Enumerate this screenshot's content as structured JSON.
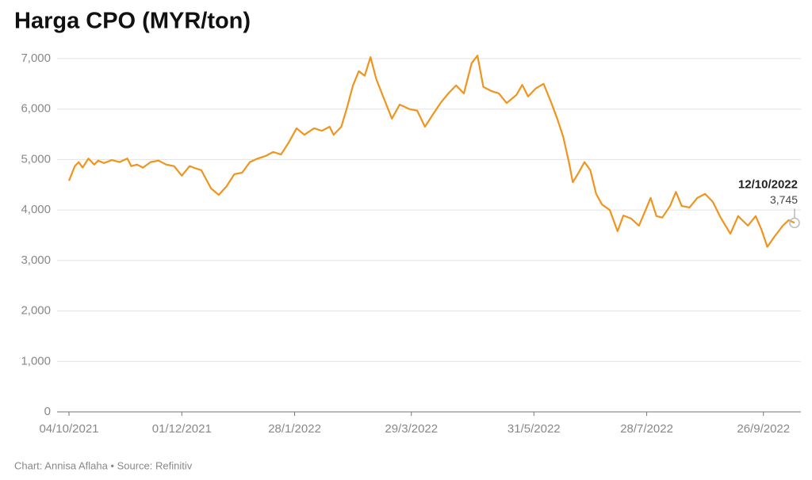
{
  "chart_data": {
    "type": "line",
    "title": "Harga CPO (MYR/ton)",
    "footer": "Chart: Annisa Aflaha • Source: Refinitiv",
    "x": [
      "04/10/2021",
      "07/10/2021",
      "09/10/2021",
      "11/10/2021",
      "14/10/2021",
      "17/10/2021",
      "19/10/2021",
      "22/10/2021",
      "26/10/2021",
      "30/10/2021",
      "03/11/2021",
      "05/11/2021",
      "08/11/2021",
      "11/11/2021",
      "15/11/2021",
      "19/11/2021",
      "23/11/2021",
      "27/11/2021",
      "01/12/2021",
      "05/12/2021",
      "07/12/2021",
      "11/12/2021",
      "16/12/2021",
      "20/12/2021",
      "24/12/2021",
      "28/12/2021",
      "01/01/2022",
      "05/01/2022",
      "09/01/2022",
      "13/01/2022",
      "17/01/2022",
      "21/01/2022",
      "25/01/2022",
      "29/01/2022",
      "02/02/2022",
      "07/02/2022",
      "11/02/2022",
      "15/02/2022",
      "17/02/2022",
      "21/02/2022",
      "24/02/2022",
      "27/02/2022",
      "02/03/2022",
      "05/03/2022",
      "08/03/2022",
      "11/03/2022",
      "15/03/2022",
      "19/03/2022",
      "23/03/2022",
      "28/03/2022",
      "01/04/2022",
      "05/04/2022",
      "09/04/2022",
      "13/04/2022",
      "17/04/2022",
      "21/04/2022",
      "25/04/2022",
      "29/04/2022",
      "02/05/2022",
      "05/05/2022",
      "09/05/2022",
      "13/05/2022",
      "17/05/2022",
      "22/05/2022",
      "25/05/2022",
      "28/05/2022",
      "01/06/2022",
      "05/06/2022",
      "09/06/2022",
      "12/06/2022",
      "15/06/2022",
      "18/06/2022",
      "20/06/2022",
      "23/06/2022",
      "26/06/2022",
      "29/06/2022",
      "02/07/2022",
      "05/07/2022",
      "09/07/2022",
      "13/07/2022",
      "16/07/2022",
      "20/07/2022",
      "24/07/2022",
      "27/07/2022",
      "30/07/2022",
      "02/08/2022",
      "05/08/2022",
      "09/08/2022",
      "12/08/2022",
      "15/08/2022",
      "19/08/2022",
      "23/08/2022",
      "27/08/2022",
      "31/08/2022",
      "04/09/2022",
      "09/09/2022",
      "13/09/2022",
      "18/09/2022",
      "22/09/2022",
      "25/09/2022",
      "28/09/2022",
      "02/10/2022",
      "06/10/2022",
      "09/10/2022",
      "12/10/2022"
    ],
    "series": [
      {
        "name": "Harga CPO",
        "color": "#f0941e",
        "values": [
          4580,
          4870,
          4950,
          4840,
          5020,
          4900,
          4980,
          4930,
          4990,
          4950,
          5020,
          4870,
          4900,
          4840,
          4950,
          4980,
          4900,
          4870,
          4680,
          4870,
          4840,
          4790,
          4430,
          4300,
          4470,
          4710,
          4740,
          4950,
          5020,
          5070,
          5150,
          5100,
          5340,
          5620,
          5490,
          5620,
          5570,
          5650,
          5490,
          5650,
          6040,
          6470,
          6750,
          6660,
          7030,
          6590,
          6200,
          5810,
          6090,
          6000,
          5970,
          5650,
          5890,
          6120,
          6310,
          6470,
          6310,
          6910,
          7060,
          6440,
          6360,
          6310,
          6120,
          6280,
          6480,
          6250,
          6410,
          6500,
          6120,
          5810,
          5460,
          4950,
          4550,
          4740,
          4950,
          4790,
          4320,
          4110,
          4000,
          3580,
          3890,
          3830,
          3690,
          3960,
          4240,
          3880,
          3850,
          4080,
          4360,
          4080,
          4050,
          4240,
          4320,
          4160,
          3850,
          3530,
          3880,
          3690,
          3880,
          3610,
          3270,
          3490,
          3690,
          3800,
          3745
        ]
      }
    ],
    "xlim": [
      "04/10/2021",
      "12/10/2022"
    ],
    "xticks": [
      "04/10/2021",
      "01/12/2021",
      "28/1/2022",
      "29/3/2022",
      "31/5/2022",
      "28/7/2022",
      "26/9/2022"
    ],
    "ylim": [
      0,
      7000
    ],
    "yticks": [
      0,
      {
        "value": 1000,
        "label": "1,000"
      },
      {
        "value": 2000,
        "label": "2,000"
      },
      {
        "value": 3000,
        "label": "3,000"
      },
      {
        "value": 4000,
        "label": "4,000"
      },
      {
        "value": 5000,
        "label": "5,000"
      },
      {
        "value": 6000,
        "label": "6,000"
      },
      {
        "value": 7000,
        "label": "7,000"
      }
    ],
    "grid": true,
    "annotation": {
      "x": "12/10/2022",
      "value": 3745,
      "label": "3,745"
    }
  }
}
